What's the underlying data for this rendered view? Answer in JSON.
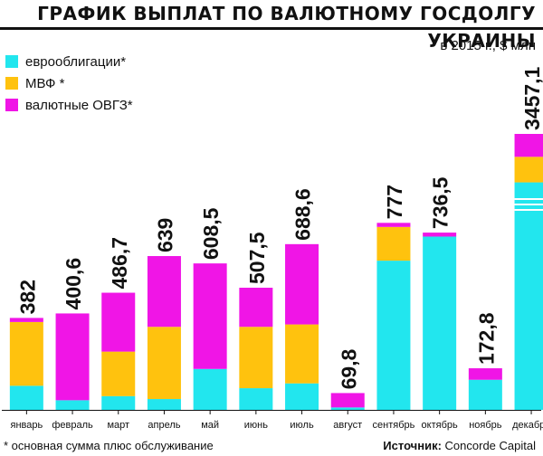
{
  "title": "ГРАФИК ВЫПЛАТ ПО ВАЛЮТНОМУ ГОСДОЛГУ УКРАИНЫ",
  "unit": "в 2015 г., $ млн",
  "footnote": "* основная сумма плюс обслуживание",
  "source": {
    "label": "Источник:",
    "value": "Concorde Capital"
  },
  "colors": {
    "eurobonds": "#22E6EE",
    "imf": "#FFC20E",
    "ovgz": "#F015E6"
  },
  "chart_data": {
    "type": "bar",
    "stacked": true,
    "categories": [
      "январь",
      "февраль",
      "март",
      "апрель",
      "май",
      "июнь",
      "июль",
      "август",
      "сентябрь",
      "октябрь",
      "ноябрь",
      "декабрь"
    ],
    "series": [
      {
        "name": "еврооблигации*",
        "values": [
          100,
          40,
          57,
          45,
          170,
          90,
          110,
          10,
          620,
          720,
          125,
          2850
        ]
      },
      {
        "name": "МВФ *",
        "values": [
          265,
          0,
          185,
          300,
          0,
          255,
          245,
          0,
          140,
          0,
          0,
          320
        ]
      },
      {
        "name": "валютные ОВГЗ*",
        "values": [
          17,
          360.6,
          244.7,
          294,
          438.5,
          162.5,
          333.6,
          59.8,
          17,
          16.5,
          47.8,
          287.1
        ]
      }
    ],
    "totals": [
      382,
      400.6,
      486.7,
      639,
      608.5,
      507.5,
      688.6,
      69.8,
      777,
      736.5,
      172.8,
      3457.1
    ],
    "total_labels": [
      "382",
      "400,6",
      "486,7",
      "639",
      "608,5",
      "507,5",
      "688,6",
      "69,8",
      "777",
      "736,5",
      "172,8",
      "3457,1"
    ],
    "axis_break_on": "декабрь",
    "grid": false,
    "legend": "top-left"
  }
}
